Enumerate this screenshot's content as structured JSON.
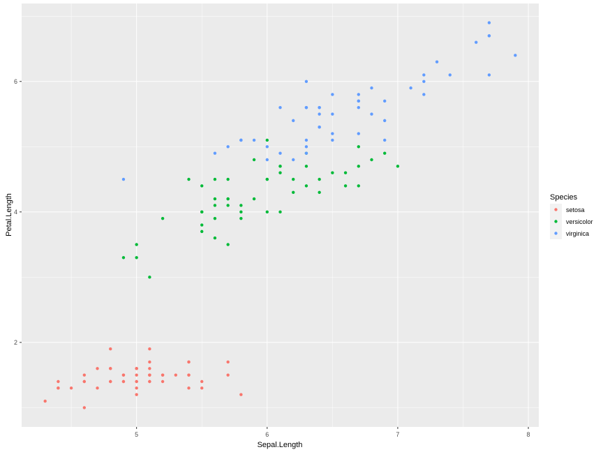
{
  "chart_data": {
    "type": "scatter",
    "title": "",
    "xlabel": "Sepal.Length",
    "ylabel": "Petal.Length",
    "xlim": [
      4.12,
      8.08
    ],
    "ylim": [
      0.705,
      7.195
    ],
    "x_ticks": [
      5,
      6,
      7,
      8
    ],
    "y_ticks": [
      2,
      4,
      6
    ],
    "grid": true,
    "legend": {
      "title": "Species",
      "placement": "right"
    },
    "series": [
      {
        "name": "setosa",
        "color": "#F8766D",
        "points": [
          [
            5.1,
            1.4
          ],
          [
            4.9,
            1.4
          ],
          [
            4.7,
            1.3
          ],
          [
            4.6,
            1.5
          ],
          [
            5.0,
            1.4
          ],
          [
            5.4,
            1.7
          ],
          [
            4.6,
            1.4
          ],
          [
            5.0,
            1.5
          ],
          [
            4.4,
            1.4
          ],
          [
            4.9,
            1.5
          ],
          [
            5.4,
            1.5
          ],
          [
            4.8,
            1.6
          ],
          [
            4.8,
            1.4
          ],
          [
            4.3,
            1.1
          ],
          [
            5.8,
            1.2
          ],
          [
            5.7,
            1.5
          ],
          [
            5.4,
            1.3
          ],
          [
            5.1,
            1.4
          ],
          [
            5.7,
            1.7
          ],
          [
            5.1,
            1.5
          ],
          [
            5.4,
            1.7
          ],
          [
            5.1,
            1.5
          ],
          [
            4.6,
            1.0
          ],
          [
            5.1,
            1.7
          ],
          [
            4.8,
            1.9
          ],
          [
            5.0,
            1.6
          ],
          [
            5.0,
            1.6
          ],
          [
            5.2,
            1.5
          ],
          [
            5.2,
            1.4
          ],
          [
            4.7,
            1.6
          ],
          [
            4.8,
            1.6
          ],
          [
            5.4,
            1.5
          ],
          [
            5.2,
            1.5
          ],
          [
            5.5,
            1.4
          ],
          [
            4.9,
            1.5
          ],
          [
            5.0,
            1.2
          ],
          [
            5.5,
            1.3
          ],
          [
            4.9,
            1.4
          ],
          [
            4.4,
            1.3
          ],
          [
            5.1,
            1.5
          ],
          [
            5.0,
            1.3
          ],
          [
            4.5,
            1.3
          ],
          [
            4.4,
            1.3
          ],
          [
            5.0,
            1.6
          ],
          [
            5.1,
            1.9
          ],
          [
            4.8,
            1.4
          ],
          [
            5.1,
            1.6
          ],
          [
            4.6,
            1.4
          ],
          [
            5.3,
            1.5
          ],
          [
            5.0,
            1.4
          ]
        ]
      },
      {
        "name": "versicolor",
        "color": "#00BA38",
        "points": [
          [
            7.0,
            4.7
          ],
          [
            6.4,
            4.5
          ],
          [
            6.9,
            4.9
          ],
          [
            5.5,
            4.0
          ],
          [
            6.5,
            4.6
          ],
          [
            5.7,
            4.5
          ],
          [
            6.3,
            4.7
          ],
          [
            4.9,
            3.3
          ],
          [
            6.6,
            4.6
          ],
          [
            5.2,
            3.9
          ],
          [
            5.0,
            3.5
          ],
          [
            5.9,
            4.2
          ],
          [
            6.0,
            4.0
          ],
          [
            6.1,
            4.7
          ],
          [
            5.6,
            3.6
          ],
          [
            6.7,
            4.4
          ],
          [
            5.6,
            4.5
          ],
          [
            5.8,
            4.1
          ],
          [
            6.2,
            4.5
          ],
          [
            5.6,
            3.9
          ],
          [
            5.9,
            4.8
          ],
          [
            6.1,
            4.0
          ],
          [
            6.3,
            4.9
          ],
          [
            6.1,
            4.7
          ],
          [
            6.4,
            4.3
          ],
          [
            6.6,
            4.4
          ],
          [
            6.8,
            4.8
          ],
          [
            6.7,
            5.0
          ],
          [
            6.0,
            4.5
          ],
          [
            5.7,
            3.5
          ],
          [
            5.5,
            3.8
          ],
          [
            5.5,
            3.7
          ],
          [
            5.8,
            3.9
          ],
          [
            6.0,
            5.1
          ],
          [
            5.4,
            4.5
          ],
          [
            6.0,
            4.5
          ],
          [
            6.7,
            4.7
          ],
          [
            6.3,
            4.4
          ],
          [
            5.6,
            4.1
          ],
          [
            5.5,
            4.0
          ],
          [
            5.5,
            4.4
          ],
          [
            6.1,
            4.6
          ],
          [
            5.8,
            4.0
          ],
          [
            5.0,
            3.3
          ],
          [
            5.6,
            4.2
          ],
          [
            5.7,
            4.2
          ],
          [
            5.7,
            4.2
          ],
          [
            6.2,
            4.3
          ],
          [
            5.1,
            3.0
          ],
          [
            5.7,
            4.1
          ]
        ]
      },
      {
        "name": "virginica",
        "color": "#619CFF",
        "points": [
          [
            6.3,
            6.0
          ],
          [
            5.8,
            5.1
          ],
          [
            7.1,
            5.9
          ],
          [
            6.3,
            5.6
          ],
          [
            6.5,
            5.8
          ],
          [
            7.6,
            6.6
          ],
          [
            4.9,
            4.5
          ],
          [
            7.3,
            6.3
          ],
          [
            6.7,
            5.8
          ],
          [
            7.2,
            6.1
          ],
          [
            6.5,
            5.1
          ],
          [
            6.4,
            5.3
          ],
          [
            6.8,
            5.5
          ],
          [
            5.7,
            5.0
          ],
          [
            5.8,
            5.1
          ],
          [
            6.4,
            5.3
          ],
          [
            6.5,
            5.5
          ],
          [
            7.7,
            6.7
          ],
          [
            7.7,
            6.9
          ],
          [
            6.0,
            5.0
          ],
          [
            6.9,
            5.7
          ],
          [
            5.6,
            4.9
          ],
          [
            7.7,
            6.7
          ],
          [
            6.3,
            4.9
          ],
          [
            6.7,
            5.7
          ],
          [
            7.2,
            6.0
          ],
          [
            6.2,
            4.8
          ],
          [
            6.1,
            4.9
          ],
          [
            6.4,
            5.6
          ],
          [
            7.2,
            5.8
          ],
          [
            7.4,
            6.1
          ],
          [
            7.9,
            6.4
          ],
          [
            6.4,
            5.6
          ],
          [
            6.3,
            5.1
          ],
          [
            6.1,
            5.6
          ],
          [
            7.7,
            6.1
          ],
          [
            6.3,
            5.6
          ],
          [
            6.4,
            5.5
          ],
          [
            6.0,
            4.8
          ],
          [
            6.9,
            5.4
          ],
          [
            6.7,
            5.6
          ],
          [
            6.9,
            5.1
          ],
          [
            5.8,
            5.1
          ],
          [
            6.8,
            5.9
          ],
          [
            6.7,
            5.7
          ],
          [
            6.7,
            5.2
          ],
          [
            6.3,
            5.0
          ],
          [
            6.5,
            5.2
          ],
          [
            6.2,
            5.4
          ],
          [
            5.9,
            5.1
          ]
        ]
      }
    ]
  }
}
